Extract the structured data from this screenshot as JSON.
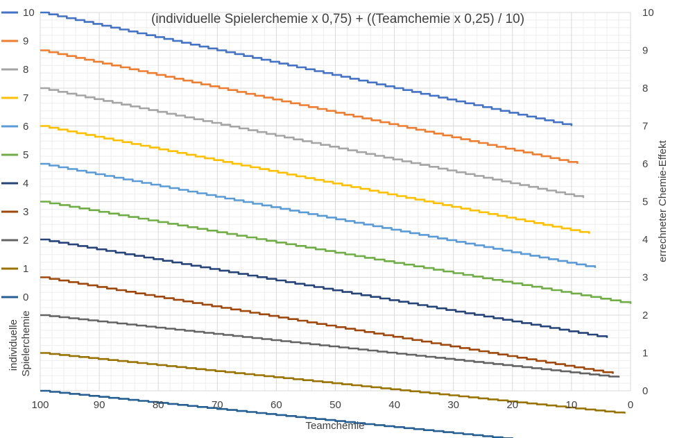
{
  "chart_data": {
    "type": "line",
    "title": "(individuelle Spielerchemie x 0,75) + ((Teamchemie x 0,25) / 10)",
    "xlabel": "Teamchemie",
    "ylabel_left": "individuelle Spielerchemie",
    "ylabel_right": "errechneter Chemie-Effekt",
    "x_axis": {
      "min": 0,
      "max": 100,
      "reversed": true,
      "ticks": [
        100,
        90,
        80,
        70,
        60,
        50,
        40,
        30,
        20,
        10,
        0
      ]
    },
    "y_axis_right": {
      "min": 0,
      "max": 10,
      "ticks": [
        0,
        1,
        2,
        3,
        4,
        5,
        6,
        7,
        8,
        9,
        10
      ]
    },
    "grid": true,
    "legend": "left",
    "series": [
      {
        "name": "10",
        "color": "#4472c4",
        "x": [
          100,
          10
        ],
        "values": [
          10.0,
          7.0
        ]
      },
      {
        "name": "9",
        "color": "#ed7d31",
        "x": [
          100,
          9
        ],
        "values": [
          9.0,
          6.0
        ]
      },
      {
        "name": "8",
        "color": "#a5a5a5",
        "x": [
          100,
          8
        ],
        "values": [
          8.0,
          5.1
        ]
      },
      {
        "name": "7",
        "color": "#ffc000",
        "x": [
          100,
          7
        ],
        "values": [
          7.0,
          4.15
        ]
      },
      {
        "name": "6",
        "color": "#5b9bd5",
        "x": [
          100,
          6
        ],
        "values": [
          6.0,
          3.25
        ]
      },
      {
        "name": "5",
        "color": "#70ad47",
        "x": [
          100,
          0
        ],
        "values": [
          5.0,
          2.3
        ]
      },
      {
        "name": "4",
        "color": "#264478",
        "x": [
          100,
          4
        ],
        "values": [
          4.0,
          1.4
        ]
      },
      {
        "name": "3",
        "color": "#9e480e",
        "x": [
          100,
          3
        ],
        "values": [
          3.0,
          0.45
        ]
      },
      {
        "name": "2",
        "color": "#636363",
        "x": [
          100,
          2
        ],
        "values": [
          2.0,
          0.35
        ]
      },
      {
        "name": "1",
        "color": "#997300",
        "x": [
          100,
          1
        ],
        "values": [
          1.0,
          -0.6
        ]
      },
      {
        "name": "0",
        "color": "#255e91",
        "x": [
          100,
          0
        ],
        "values": [
          0.0,
          -1.6
        ]
      }
    ]
  }
}
